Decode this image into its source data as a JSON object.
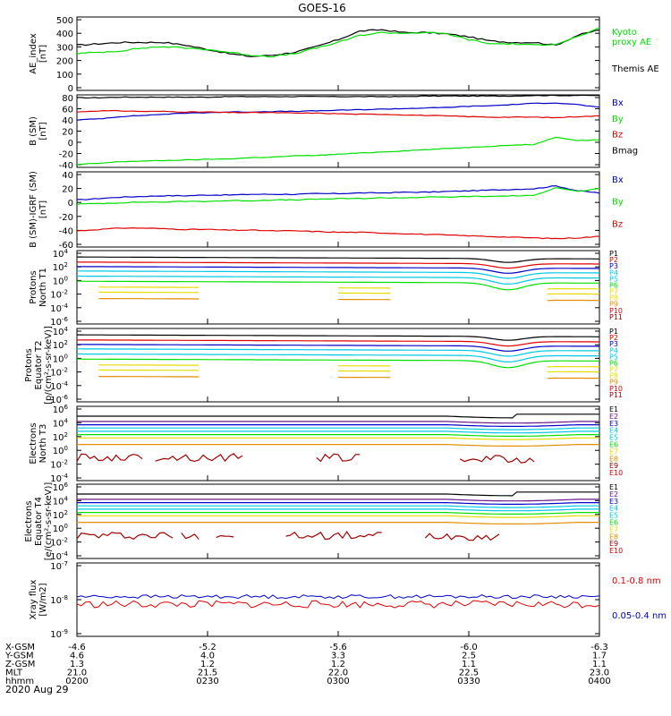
{
  "title": "GOES-16",
  "date": "2020 Aug 29",
  "colors": {
    "black": "#000000",
    "green": "#00e000",
    "blue": "#0000c8",
    "red": "#e00000",
    "darkred": "#a00000",
    "cyan": "#00c8e6",
    "yellow": "#e6dc00",
    "orange": "#e68c00",
    "navy": "#000080",
    "purple": "#6a1a8a"
  },
  "panels": [
    {
      "id": "ae",
      "ylabel_lines": [
        "AE_index",
        "[nT]"
      ],
      "ticks": [
        "500",
        "400",
        "300",
        "200",
        "100",
        "0"
      ],
      "legend": [
        {
          "text": "Kyoto",
          "color": "#00e000"
        },
        {
          "text": "proxy AE",
          "color": "#00e000"
        },
        {
          "text": "Themis AE",
          "color": "#000000"
        }
      ]
    },
    {
      "id": "bsm",
      "ylabel_lines": [
        "B (SM)",
        "[nT]"
      ],
      "ticks": [
        "80",
        "60",
        "40",
        "20",
        "0",
        "-20",
        "-40"
      ],
      "legend": [
        {
          "text": "Bx",
          "color": "#0000c8"
        },
        {
          "text": "By",
          "color": "#00e000"
        },
        {
          "text": "Bz",
          "color": "#e00000"
        },
        {
          "text": "Bmag",
          "color": "#000000"
        }
      ]
    },
    {
      "id": "bigrf",
      "ylabel_lines": [
        "B (SM)-IGRF (SM)",
        "[nT]"
      ],
      "ticks": [
        "40",
        "20",
        "0",
        "-20",
        "-40",
        "-60"
      ],
      "legend": [
        {
          "text": "Bx",
          "color": "#0000c8"
        },
        {
          "text": "By",
          "color": "#00e000"
        },
        {
          "text": "Bz",
          "color": "#e00000"
        }
      ]
    },
    {
      "id": "pnorth",
      "ylabel_lines": [
        "Protons",
        "North T1"
      ],
      "ticks": [
        "10^4",
        "10^2",
        "10^0",
        "10^-2",
        "10^-4",
        "10^-6"
      ],
      "channels": [
        "P1",
        "P2",
        "P3",
        "P4",
        "P5",
        "P6",
        "P7",
        "P8",
        "P9",
        "P10",
        "P11"
      ]
    },
    {
      "id": "peq",
      "ylabel_lines": [
        "Protons",
        "Equator T2",
        "[p/(cm²-s-sr-keV)]"
      ],
      "ticks": [
        "10^4",
        "10^2",
        "10^0",
        "10^-2",
        "10^-4",
        "10^-6"
      ],
      "channels": [
        "P1",
        "P2",
        "P3",
        "P4",
        "P5",
        "P6",
        "P7",
        "P8",
        "P9",
        "P10",
        "P11"
      ]
    },
    {
      "id": "enorth",
      "ylabel_lines": [
        "Electrons",
        "North T3"
      ],
      "ticks": [
        "10^6",
        "10^4",
        "10^2",
        "10^0",
        "10^-2",
        "10^-4"
      ],
      "channels": [
        "E1",
        "E2",
        "E3",
        "E4",
        "E5",
        "E6",
        "E7",
        "E8",
        "E9",
        "E10"
      ]
    },
    {
      "id": "eeq",
      "ylabel_lines": [
        "Electrons",
        "Equator T4",
        "[e/(cm²-s-sr-keV)]"
      ],
      "ticks": [
        "10^6",
        "10^4",
        "10^2",
        "10^0",
        "10^-2",
        "10^-4"
      ],
      "channels": [
        "E1",
        "E2",
        "E3",
        "E4",
        "E5",
        "E6",
        "E7",
        "E8",
        "E9",
        "E10"
      ]
    },
    {
      "id": "xray",
      "ylabel_lines": [
        "Xray flux",
        "[W/m2]"
      ],
      "ticks": [
        "10^-7",
        "10^-8",
        "10^-9"
      ],
      "legend": [
        {
          "text": "0.1-0.8 nm",
          "color": "#e00000"
        },
        {
          "text": "0.05-0.4 nm",
          "color": "#0000c8"
        }
      ]
    }
  ],
  "footer": {
    "labels": [
      "X-GSM",
      "Y-GSM",
      "Z-GSM",
      "MLT",
      "hhmm"
    ],
    "columns": [
      [
        "-4.6",
        "4.6",
        "1.3",
        "21.0",
        "0200"
      ],
      [
        "-5.2",
        "4.0",
        "1.2",
        "21.5",
        "0230"
      ],
      [
        "-5.6",
        "3.3",
        "1.2",
        "22.0",
        "0300"
      ],
      [
        "-6.0",
        "2.5",
        "1.1",
        "22.5",
        "0330"
      ],
      [
        "-6.3",
        "1.7",
        "1.1",
        "23.0",
        "0400"
      ]
    ]
  },
  "chart_data": {
    "type": "line",
    "title": "GOES-16",
    "x": [
      0,
      5,
      10,
      15,
      20,
      25,
      30,
      35,
      40,
      45,
      50,
      55,
      60,
      65,
      70,
      75,
      80,
      85,
      90,
      95,
      100,
      105,
      110,
      115,
      120
    ],
    "xlabel": "hhmm (UT), 2020 Aug 29",
    "xlim": [
      0,
      120
    ],
    "xtick_labels": [
      "0200",
      "0230",
      "0300",
      "0330",
      "0400"
    ],
    "series": [
      {
        "panel": "ae",
        "name": "Themis AE",
        "color": "#000000",
        "values": [
          320,
          330,
          340,
          340,
          340,
          320,
          290,
          260,
          240,
          250,
          270,
          310,
          360,
          420,
          430,
          410,
          410,
          400,
          380,
          350,
          340,
          340,
          320,
          390,
          430
        ]
      },
      {
        "panel": "ae",
        "name": "Kyoto proxy AE",
        "color": "#00e000",
        "values": [
          260,
          270,
          280,
          300,
          310,
          300,
          290,
          270,
          250,
          240,
          260,
          300,
          340,
          390,
          410,
          405,
          410,
          400,
          360,
          330,
          330,
          320,
          330,
          380,
          440
        ]
      },
      {
        "panel": "bsm",
        "name": "Bmag",
        "color": "#000000",
        "values": [
          77,
          77,
          78,
          78,
          78,
          78,
          78,
          79,
          79,
          79,
          79,
          79,
          79,
          79,
          79,
          79,
          80,
          80,
          80,
          80,
          80,
          81,
          81,
          81,
          81
        ]
      },
      {
        "panel": "bsm",
        "name": "Bx",
        "color": "#0000c8",
        "values": [
          38,
          40,
          44,
          46,
          48,
          50,
          51,
          52,
          52,
          53,
          53,
          54,
          55,
          56,
          57,
          58,
          59,
          60,
          62,
          63,
          65,
          67,
          68,
          65,
          60
        ]
      },
      {
        "panel": "bsm",
        "name": "Bz",
        "color": "#e00000",
        "values": [
          52,
          54,
          54,
          53,
          53,
          52,
          52,
          51,
          51,
          51,
          50,
          50,
          49,
          48,
          48,
          47,
          46,
          45,
          44,
          43,
          43,
          43,
          42,
          44,
          45
        ]
      },
      {
        "panel": "bsm",
        "name": "By",
        "color": "#00e000",
        "values": [
          -40,
          -38,
          -35,
          -34,
          -33,
          -32,
          -31,
          -30,
          -28,
          -27,
          -25,
          -24,
          -22,
          -20,
          -18,
          -16,
          -14,
          -12,
          -10,
          -8,
          -6,
          -5,
          8,
          2,
          3
        ]
      },
      {
        "panel": "bigrf",
        "name": "Bx",
        "color": "#0000c8",
        "values": [
          2,
          4,
          6,
          7,
          8,
          8,
          9,
          9,
          10,
          10,
          10,
          11,
          11,
          12,
          12,
          13,
          13,
          14,
          15,
          16,
          17,
          18,
          22,
          15,
          12
        ]
      },
      {
        "panel": "bigrf",
        "name": "By",
        "color": "#00e000",
        "values": [
          -4,
          -3,
          -2,
          -1,
          -1,
          0,
          0,
          1,
          1,
          2,
          2,
          3,
          4,
          4,
          5,
          5,
          6,
          6,
          7,
          7,
          8,
          8,
          20,
          14,
          18
        ]
      },
      {
        "panel": "bigrf",
        "name": "Bz",
        "color": "#e00000",
        "values": [
          -42,
          -40,
          -38,
          -38,
          -39,
          -40,
          -40,
          -41,
          -41,
          -42,
          -42,
          -43,
          -44,
          -44,
          -45,
          -46,
          -47,
          -48,
          -49,
          -50,
          -51,
          -52,
          -53,
          -52,
          -50
        ]
      }
    ],
    "proton_log10_levels": [
      3.5,
      2.7,
      2.0,
      1.3,
      0.5,
      -0.3,
      -1.2,
      -2.0,
      -3.0,
      -4.5,
      -5.5
    ],
    "electron_log10_levels": [
      4.8,
      4.0,
      3.5,
      3.0,
      2.5,
      2.0,
      1.5,
      0.5,
      -1.5,
      -3.0
    ],
    "xray_log10_flux": {
      "0.1-0.8 nm": -8.35,
      "0.05-0.4 nm": -8.1
    }
  }
}
